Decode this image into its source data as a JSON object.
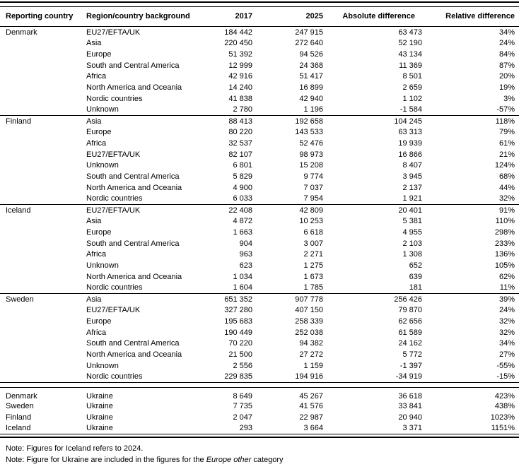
{
  "page": {
    "background": "#ffffff",
    "text_color": "#000000",
    "rule_color": "#000000"
  },
  "table": {
    "columns": [
      {
        "key": "country",
        "label": "Reporting country",
        "align": "left"
      },
      {
        "key": "region",
        "label": "Region/country background",
        "align": "left"
      },
      {
        "key": "y2017",
        "label": "2017",
        "align": "right"
      },
      {
        "key": "y2025",
        "label": "2025",
        "align": "right"
      },
      {
        "key": "abs",
        "label": "Absolute difference",
        "align": "right"
      },
      {
        "key": "rel",
        "label": "Relative difference",
        "align": "right"
      }
    ],
    "groups": [
      {
        "country": "Denmark",
        "rows": [
          {
            "region": "EU27/EFTA/UK",
            "y2017": "184 442",
            "y2025": "247 915",
            "abs": "63 473",
            "rel": "34%"
          },
          {
            "region": "Asia",
            "y2017": "220 450",
            "y2025": "272 640",
            "abs": "52 190",
            "rel": "24%"
          },
          {
            "region": "Europe",
            "y2017": "51 392",
            "y2025": "94 526",
            "abs": "43 134",
            "rel": "84%"
          },
          {
            "region": "South and Central America",
            "y2017": "12 999",
            "y2025": "24 368",
            "abs": "11 369",
            "rel": "87%"
          },
          {
            "region": "Africa",
            "y2017": "42 916",
            "y2025": "51 417",
            "abs": "8 501",
            "rel": "20%"
          },
          {
            "region": "North America and Oceania",
            "y2017": "14 240",
            "y2025": "16 899",
            "abs": "2 659",
            "rel": "19%"
          },
          {
            "region": "Nordic countries",
            "y2017": "41 838",
            "y2025": "42 940",
            "abs": "1 102",
            "rel": "3%"
          },
          {
            "region": "Unknown",
            "y2017": "2 780",
            "y2025": "1 196",
            "abs": "-1 584",
            "rel": "-57%"
          }
        ]
      },
      {
        "country": "Finland",
        "rows": [
          {
            "region": "Asia",
            "y2017": "88 413",
            "y2025": "192 658",
            "abs": "104 245",
            "rel": "118%"
          },
          {
            "region": "Europe",
            "y2017": "80 220",
            "y2025": "143 533",
            "abs": "63 313",
            "rel": "79%"
          },
          {
            "region": "Africa",
            "y2017": "32 537",
            "y2025": "52 476",
            "abs": "19 939",
            "rel": "61%"
          },
          {
            "region": "EU27/EFTA/UK",
            "y2017": "82 107",
            "y2025": "98 973",
            "abs": "16 866",
            "rel": "21%"
          },
          {
            "region": "Unknown",
            "y2017": "6 801",
            "y2025": "15 208",
            "abs": "8 407",
            "rel": "124%"
          },
          {
            "region": "South and Central America",
            "y2017": "5 829",
            "y2025": "9 774",
            "abs": "3 945",
            "rel": "68%"
          },
          {
            "region": "North America and Oceania",
            "y2017": "4 900",
            "y2025": "7 037",
            "abs": "2 137",
            "rel": "44%"
          },
          {
            "region": "Nordic countries",
            "y2017": "6 033",
            "y2025": "7 954",
            "abs": "1 921",
            "rel": "32%"
          }
        ]
      },
      {
        "country": "Iceland",
        "rows": [
          {
            "region": "EU27/EFTA/UK",
            "y2017": "22 408",
            "y2025": "42 809",
            "abs": "20 401",
            "rel": "91%"
          },
          {
            "region": "Asia",
            "y2017": "4 872",
            "y2025": "10 253",
            "abs": "5 381",
            "rel": "110%"
          },
          {
            "region": "Europe",
            "y2017": "1 663",
            "y2025": "6 618",
            "abs": "4 955",
            "rel": "298%"
          },
          {
            "region": "South and Central America",
            "y2017": "904",
            "y2025": "3 007",
            "abs": "2 103",
            "rel": "233%"
          },
          {
            "region": "Africa",
            "y2017": "963",
            "y2025": "2 271",
            "abs": "1 308",
            "rel": "136%"
          },
          {
            "region": "Unknown",
            "y2017": "623",
            "y2025": "1 275",
            "abs": "652",
            "rel": "105%"
          },
          {
            "region": "North America and Oceania",
            "y2017": "1 034",
            "y2025": "1 673",
            "abs": "639",
            "rel": "62%"
          },
          {
            "region": "Nordic countries",
            "y2017": "1 604",
            "y2025": "1 785",
            "abs": "181",
            "rel": "11%"
          }
        ]
      },
      {
        "country": "Sweden",
        "rows": [
          {
            "region": "Asia",
            "y2017": "651 352",
            "y2025": "907 778",
            "abs": "256 426",
            "rel": "39%"
          },
          {
            "region": "EU27/EFTA/UK",
            "y2017": "327 280",
            "y2025": "407 150",
            "abs": "79 870",
            "rel": "24%"
          },
          {
            "region": "Europe",
            "y2017": "195 683",
            "y2025": "258 339",
            "abs": "62 656",
            "rel": "32%"
          },
          {
            "region": "Africa",
            "y2017": "190 449",
            "y2025": "252 038",
            "abs": "61 589",
            "rel": "32%"
          },
          {
            "region": "South and Central America",
            "y2017": "70 220",
            "y2025": "94 382",
            "abs": "24 162",
            "rel": "34%"
          },
          {
            "region": "North America and Oceania",
            "y2017": "21 500",
            "y2025": "27 272",
            "abs": "5 772",
            "rel": "27%"
          },
          {
            "region": "Unknown",
            "y2017": "2 556",
            "y2025": "1 159",
            "abs": "-1 397",
            "rel": "-55%"
          },
          {
            "region": "Nordic countries",
            "y2017": "229 835",
            "y2025": "194 916",
            "abs": "-34 919",
            "rel": "-15%"
          }
        ]
      }
    ],
    "ukraine_rows": [
      {
        "country": "Denmark",
        "region": "Ukraine",
        "y2017": "8 649",
        "y2025": "45 267",
        "abs": "36 618",
        "rel": "423%"
      },
      {
        "country": "Sweden",
        "region": "Ukraine",
        "y2017": "7 735",
        "y2025": "41 576",
        "abs": "33 841",
        "rel": "438%"
      },
      {
        "country": "Finland",
        "region": "Ukraine",
        "y2017": "2 047",
        "y2025": "22 987",
        "abs": "20 940",
        "rel": "1023%"
      },
      {
        "country": "Iceland",
        "region": "Ukraine",
        "y2017": "293",
        "y2025": "3 664",
        "abs": "3 371",
        "rel": "1151%"
      }
    ]
  },
  "notes": {
    "note1": "Note: Figures for Iceland refers to 2024.",
    "note2_prefix": "Note: Figure for Ukraine are included in the figures for the ",
    "note2_italic": "Europe other",
    "note2_suffix": " category"
  }
}
